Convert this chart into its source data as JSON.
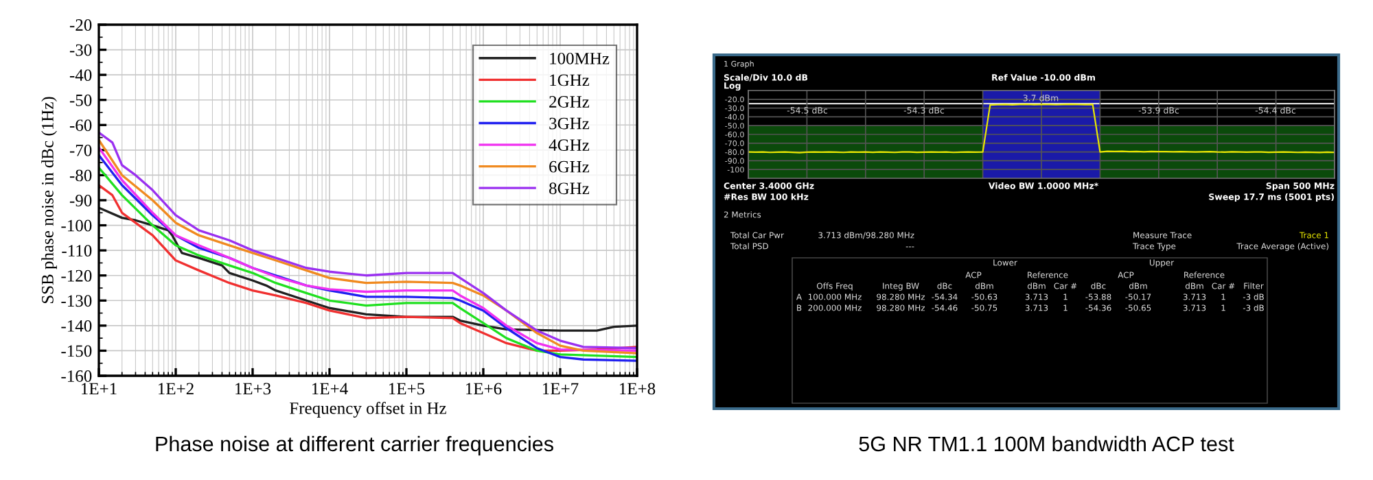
{
  "chart_data": [
    {
      "type": "line",
      "xlabel": "Frequency offset in Hz",
      "ylabel": "SSB phase noise in dBc (1Hz)",
      "log": "x",
      "grid": true,
      "legend": "top right",
      "xlim": [
        10,
        100000000
      ],
      "ylim": [
        -160,
        -20
      ],
      "xticks": [
        {
          "value": 10,
          "label": "1E+1"
        },
        {
          "value": 100,
          "label": "1E+2"
        },
        {
          "value": 1000,
          "label": "1E+3"
        },
        {
          "value": 10000,
          "label": "1E+4"
        },
        {
          "value": 100000,
          "label": "1E+5"
        },
        {
          "value": 1000000,
          "label": "1E+6"
        },
        {
          "value": 10000000,
          "label": "1E+7"
        },
        {
          "value": 100000000,
          "label": "1E+8"
        }
      ],
      "yticks": [
        -20,
        -30,
        -40,
        -50,
        -60,
        -70,
        -80,
        -90,
        -100,
        -110,
        -120,
        -130,
        -140,
        -150,
        -160
      ],
      "annotations": [
        "Phase noise at different carrier frequencies"
      ],
      "series": [
        {
          "name": "100MHz",
          "color": "#202020",
          "x": [
            10,
            20,
            30,
            50,
            80,
            90,
            120,
            200,
            400,
            500,
            1000,
            1500,
            2000,
            5000,
            10000,
            30000,
            100000,
            400000,
            500000,
            1000000,
            2000000,
            10000000,
            30000000,
            50000000,
            100000000
          ],
          "values": [
            -93,
            -97,
            -98,
            -100,
            -102,
            -104,
            -111,
            -113,
            -116,
            -119,
            -122,
            -124,
            -126,
            -130,
            -133,
            -135.5,
            -136.5,
            -136.5,
            -138,
            -140,
            -141.5,
            -142,
            -142,
            -140.5,
            -140
          ]
        },
        {
          "name": "1GHz",
          "color": "#f03030",
          "x": [
            10,
            15,
            20,
            50,
            100,
            200,
            500,
            1000,
            2000,
            5000,
            10000,
            30000,
            100000,
            400000,
            500000,
            1000000,
            2000000,
            5000000,
            10000000,
            30000000,
            100000000
          ],
          "values": [
            -84,
            -88,
            -95,
            -104,
            -114,
            -118,
            -123,
            -126,
            -128,
            -131,
            -134,
            -137,
            -136.5,
            -137,
            -139,
            -143,
            -147,
            -150,
            -150,
            -149.5,
            -148.5
          ]
        },
        {
          "name": "2GHz",
          "color": "#20e020",
          "x": [
            10,
            20,
            50,
            100,
            200,
            500,
            1000,
            2000,
            5000,
            10000,
            30000,
            100000,
            400000,
            500000,
            1000000,
            2000000,
            5000000,
            10000000,
            100000000
          ],
          "values": [
            -77,
            -88,
            -100,
            -108,
            -112,
            -116,
            -119,
            -123,
            -127,
            -130,
            -132,
            -131,
            -131,
            -133,
            -139,
            -145,
            -150,
            -151.5,
            -152.5
          ]
        },
        {
          "name": "3GHz",
          "color": "#2020f0",
          "x": [
            10,
            20,
            50,
            100,
            200,
            500,
            1000,
            2000,
            5000,
            10000,
            30000,
            100000,
            400000,
            500000,
            1000000,
            2000000,
            5000000,
            10000000,
            20000000,
            100000000
          ],
          "values": [
            -72,
            -84,
            -96,
            -104,
            -109,
            -113,
            -117,
            -120,
            -124,
            -126,
            -128.5,
            -128.5,
            -129,
            -130,
            -134,
            -141,
            -149,
            -152.5,
            -153.5,
            -154
          ]
        },
        {
          "name": "4GHz",
          "color": "#f030f0",
          "x": [
            10,
            20,
            50,
            100,
            200,
            500,
            1000,
            2000,
            5000,
            10000,
            30000,
            100000,
            400000,
            500000,
            1000000,
            2000000,
            5000000,
            10000000,
            100000000
          ],
          "values": [
            -69,
            -82,
            -95,
            -104,
            -108,
            -113,
            -117,
            -120.5,
            -124,
            -125.5,
            -126.5,
            -126,
            -126,
            -128,
            -133,
            -140,
            -147,
            -149.5,
            -150
          ]
        },
        {
          "name": "6GHz",
          "color": "#f08a20",
          "x": [
            10,
            20,
            50,
            100,
            200,
            500,
            1000,
            2000,
            5000,
            10000,
            30000,
            100000,
            400000,
            500000,
            1000000,
            2000000,
            5000000,
            10000000,
            20000000,
            100000000
          ],
          "values": [
            -66,
            -80,
            -90,
            -99,
            -104,
            -108,
            -111,
            -114,
            -118,
            -121,
            -123,
            -122.5,
            -123,
            -124,
            -128,
            -134,
            -143,
            -148,
            -150,
            -151
          ]
        },
        {
          "name": "8GHz",
          "color": "#9a30f0",
          "x": [
            10,
            15,
            20,
            30,
            50,
            100,
            200,
            500,
            1000,
            2000,
            5000,
            10000,
            30000,
            100000,
            400000,
            500000,
            1000000,
            2000000,
            5000000,
            10000000,
            20000000,
            100000000
          ],
          "values": [
            -63,
            -67,
            -76,
            -80,
            -86,
            -96,
            -102,
            -106,
            -110,
            -113,
            -117,
            -118.5,
            -120,
            -119,
            -119,
            -121,
            -127,
            -134,
            -142,
            -146,
            -148.5,
            -149
          ]
        }
      ]
    },
    {
      "type": "line",
      "grid": true,
      "tick_labels": "y",
      "ylim": [
        -110,
        -10
      ],
      "categories": [
        null,
        null,
        null,
        null,
        null,
        null,
        null,
        null,
        null,
        null,
        null,
        null,
        null,
        null,
        null,
        null,
        null,
        null,
        null,
        null,
        null,
        null,
        null,
        null,
        null,
        null,
        null,
        null,
        null,
        null,
        null,
        null,
        null,
        null,
        null,
        null,
        null,
        null,
        null,
        null,
        null,
        null,
        null,
        null,
        null,
        null,
        null,
        null,
        null,
        null,
        null,
        null,
        null,
        null,
        null,
        null,
        null,
        null,
        null,
        null,
        null,
        null,
        null,
        null,
        null,
        null,
        null,
        null,
        null,
        null,
        null,
        null,
        null,
        null,
        null,
        null,
        null,
        null,
        null,
        null,
        null
      ],
      "yticks": [
        {
          "value": -20,
          "label": "-20.0"
        },
        {
          "value": -30,
          "label": "-30.0"
        },
        {
          "value": -40,
          "label": "-40.0"
        },
        {
          "value": -50,
          "label": "-50.0"
        },
        {
          "value": -60,
          "label": "-60.0"
        },
        {
          "value": -70,
          "label": "-70.0"
        },
        {
          "value": -80,
          "label": "-80.0"
        },
        {
          "value": -90,
          "label": "-90.0"
        },
        {
          "value": -100,
          "label": "-100"
        }
      ],
      "bands": [
        {
          "axis": "y",
          "from": -110,
          "to": -50,
          "color": "#0b4a0b"
        }
      ],
      "ref_lines": [
        {
          "axis": "y",
          "value": -25,
          "color": "#d8d8d8"
        }
      ],
      "annotations": [
        "1 Graph",
        "Scale/Div 10.0 dB",
        "Ref Value -10.00 dBm",
        "Log",
        "Center 3.4000 GHz",
        "Video BW 1.0000 MHz*",
        "Span 500 MHz",
        "#Res BW 100 kHz",
        "Sweep 17.7 ms (5001 pts)",
        "5G NR TM1.1 100M bandwidth ACP test",
        "-54.5 dBc",
        "-54.3 dBc",
        "3.7 dBm",
        "-53.9 dBc",
        "-54.4 dBc"
      ],
      "series": [
        {
          "color": "#e8e800",
          "values": [
            -80,
            -80.3,
            -80,
            -80.5,
            -80.2,
            -80,
            -80.4,
            -80.8,
            -80.3,
            -80,
            -80.2,
            -80,
            -80.3,
            -80.5,
            -80,
            -80.2,
            -80,
            -80.4,
            -80,
            -80.3,
            -80.5,
            -80.1,
            -80,
            -80.4,
            -80.2,
            -80,
            -80.3,
            -80,
            -80.5,
            -80.2,
            -80,
            -80.3,
            -80,
            -26.5,
            -26.2,
            -26,
            -26.3,
            -26,
            -25.8,
            -26.1,
            -26,
            -25.9,
            -26.2,
            -26,
            -25.8,
            -26,
            -26.1,
            -26,
            -80,
            -79.2,
            -79.5,
            -79.3,
            -79.6,
            -79.4,
            -79.8,
            -79.5,
            -79.7,
            -79.6,
            -79.9,
            -79.7,
            -79.8,
            -80,
            -79.8,
            -79.6,
            -80,
            -80.2,
            -79.9,
            -80,
            -80.3,
            -80.1,
            -80,
            -80.4,
            -80.2,
            -80,
            -80.3,
            -80.5,
            -80.2,
            -80.4,
            -80.6,
            -80.3,
            -80.5
          ]
        }
      ]
    },
    {
      "type": "other",
      "annotations": [
        "2 Metrics",
        "Total Car Pwr",
        "3.713 dBm/98.280 MHz",
        "Total PSD",
        "---",
        "Measure Trace",
        "Trace 1",
        "Trace Type",
        "Trace Average (Active)",
        "Lower",
        "Upper",
        "ACP",
        "Reference",
        "ACP",
        "Reference",
        "Offs Freq",
        "Integ BW",
        "dBc",
        "dBm",
        "dBm",
        "Car #",
        "dBc",
        "dBm",
        "dBm",
        "Car #",
        "Filter",
        "A",
        "100.000 MHz",
        "98.280 MHz",
        "-54.34",
        "-50.63",
        "3.713",
        "1",
        "-53.88",
        "-50.17",
        "3.713",
        "1",
        "-3 dB",
        "B",
        "200.000 MHz",
        "98.280 MHz",
        "-54.46",
        "-50.75",
        "3.713",
        "1",
        "-54.36",
        "-50.65",
        "3.713",
        "1",
        "-3 dB"
      ]
    }
  ]
}
